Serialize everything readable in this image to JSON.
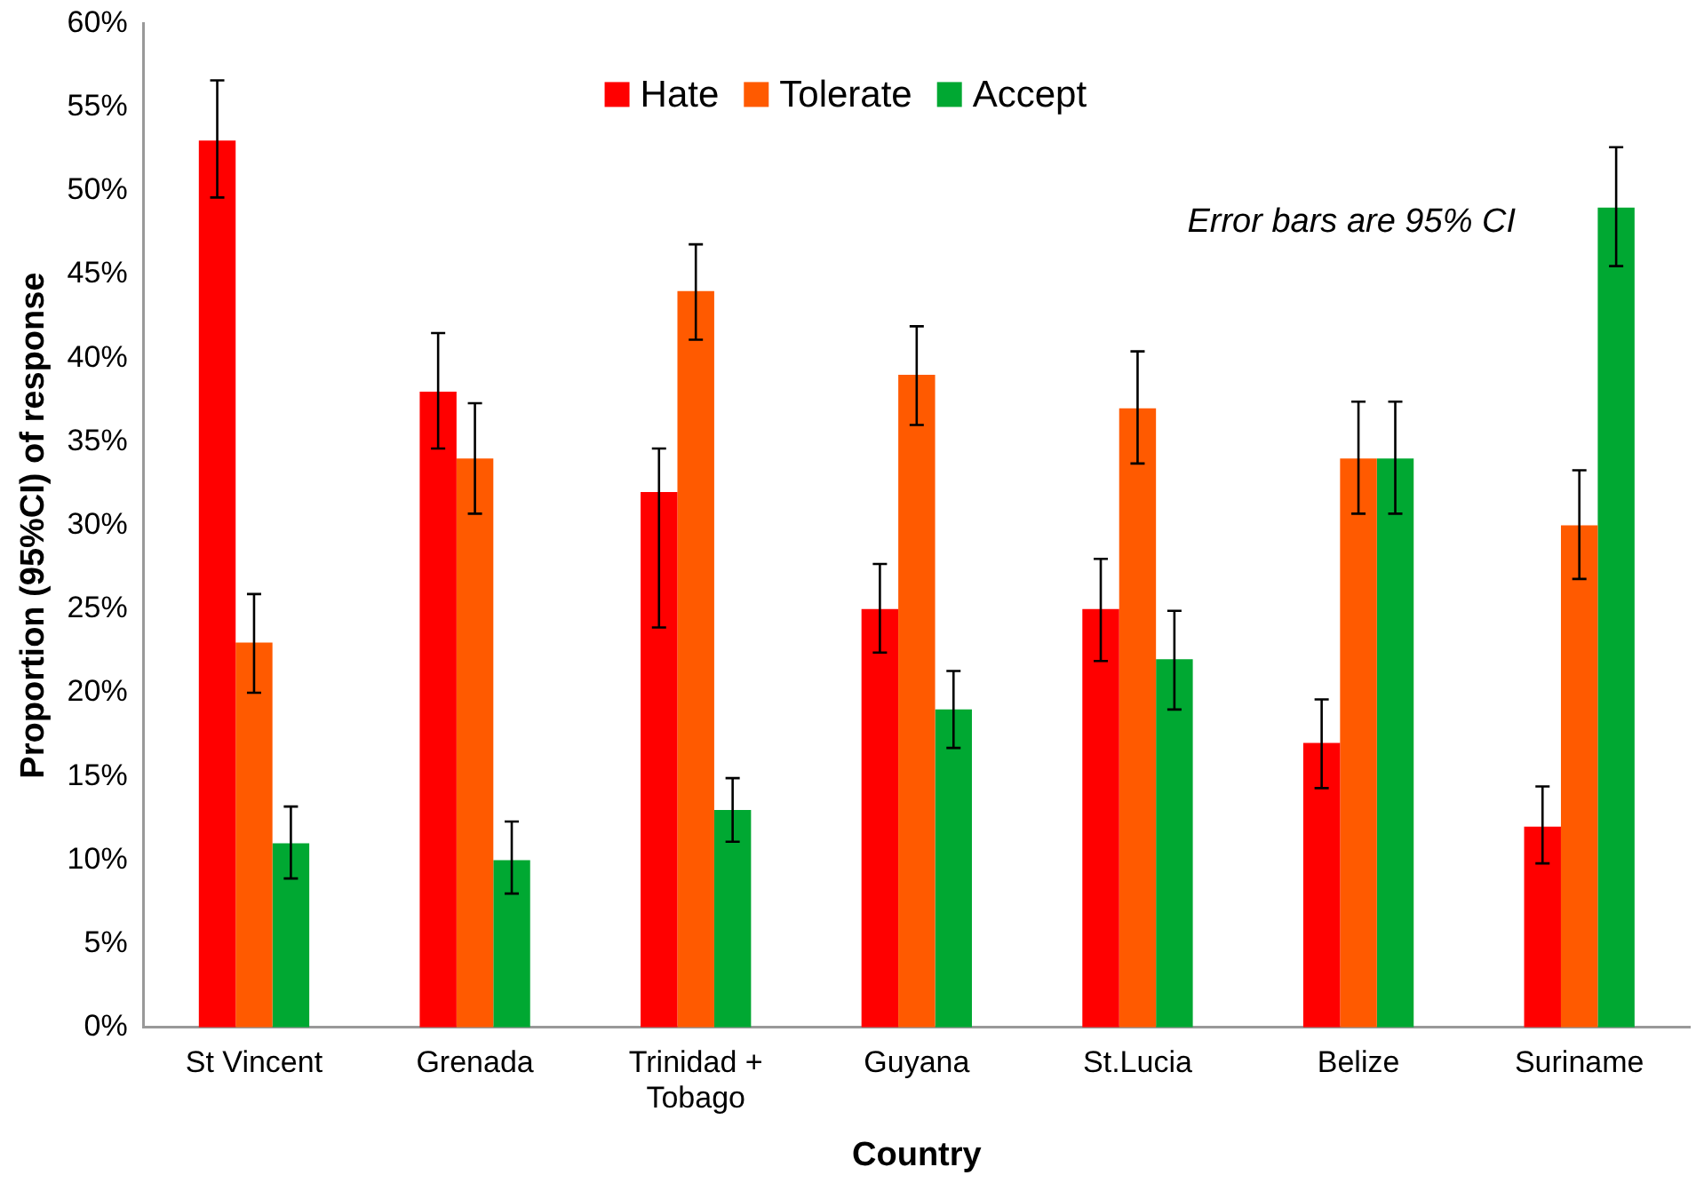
{
  "chart_data": {
    "type": "bar",
    "xlabel": "Country",
    "ylabel": "Proportion (95%CI) of response",
    "categories": [
      "St Vincent",
      "Grenada",
      "Trinidad + Tobago",
      "Guyana",
      "St.Lucia",
      "Belize",
      "Suriname"
    ],
    "series": [
      {
        "name": "Hate",
        "color": "#ff0000",
        "values": [
          53,
          38,
          32,
          25,
          25,
          17,
          12
        ],
        "errors": [
          [
            49.6,
            56.6
          ],
          [
            34.6,
            41.5
          ],
          [
            23.9,
            34.6
          ],
          [
            22.4,
            27.7
          ],
          [
            21.9,
            28.0
          ],
          [
            14.3,
            19.6
          ],
          [
            9.8,
            14.4
          ]
        ]
      },
      {
        "name": "Tolerate",
        "color": "#ff5a00",
        "values": [
          23,
          34,
          44,
          39,
          37,
          34,
          30
        ],
        "errors": [
          [
            20.0,
            25.9
          ],
          [
            30.7,
            37.3
          ],
          [
            41.1,
            46.8
          ],
          [
            36.0,
            41.9
          ],
          [
            33.7,
            40.4
          ],
          [
            30.7,
            37.4
          ],
          [
            26.8,
            33.3
          ]
        ]
      },
      {
        "name": "Accept",
        "color": "#00a832",
        "values": [
          11,
          10,
          13,
          19,
          22,
          34,
          49
        ],
        "errors": [
          [
            8.9,
            13.2
          ],
          [
            8.0,
            12.3
          ],
          [
            11.1,
            14.9
          ],
          [
            16.7,
            21.3
          ],
          [
            19.0,
            24.9
          ],
          [
            30.7,
            37.4
          ],
          [
            45.5,
            52.6
          ]
        ]
      }
    ],
    "ylim": [
      0,
      60
    ],
    "yticks": [
      {
        "value": 0,
        "label": "0%"
      },
      {
        "value": 5,
        "label": "5%"
      },
      {
        "value": 10,
        "label": "10%"
      },
      {
        "value": 15,
        "label": "15%"
      },
      {
        "value": 20,
        "label": "20%"
      },
      {
        "value": 25,
        "label": "25%"
      },
      {
        "value": 30,
        "label": "30%"
      },
      {
        "value": 35,
        "label": "35%"
      },
      {
        "value": 40,
        "label": "40%"
      },
      {
        "value": 45,
        "label": "45%"
      },
      {
        "value": 50,
        "label": "50%"
      },
      {
        "value": 55,
        "label": "55%"
      },
      {
        "value": 60,
        "label": "60%"
      }
    ],
    "legend": "top",
    "grid": false,
    "annotations": [
      "Error bars are 95% CI"
    ]
  }
}
